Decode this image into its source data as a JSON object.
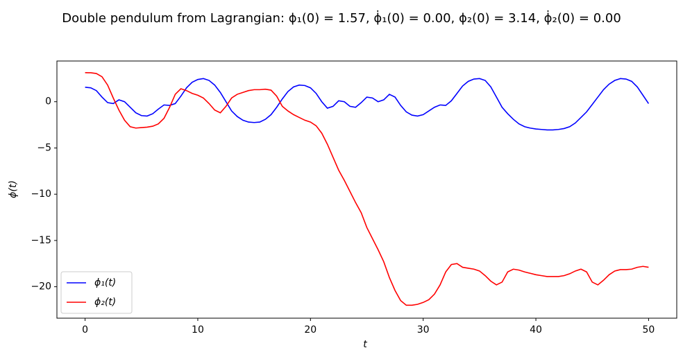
{
  "chart_data": {
    "type": "line",
    "title": "Double pendulum from Lagrangian:    ϕ₁(0) = 1.57,   ϕ̇₁(0) = 0.00,   ϕ₂(0) = 3.14,   ϕ̇₂(0) = 0.00",
    "xlabel": "t",
    "ylabel": "ϕ(t)",
    "x": [
      0,
      0.5,
      1,
      1.5,
      2,
      2.5,
      3,
      3.5,
      4,
      4.5,
      5,
      5.5,
      6,
      6.5,
      7,
      7.5,
      8,
      8.5,
      9,
      9.5,
      10,
      10.5,
      11,
      11.5,
      12,
      12.5,
      13,
      13.5,
      14,
      14.5,
      15,
      15.5,
      16,
      16.5,
      17,
      17.5,
      18,
      18.5,
      19,
      19.5,
      20,
      20.5,
      21,
      21.5,
      22,
      22.5,
      23,
      23.5,
      24,
      24.5,
      25,
      25.5,
      26,
      26.5,
      27,
      27.5,
      28,
      28.5,
      29,
      29.5,
      30,
      30.5,
      31,
      31.5,
      32,
      32.5,
      33,
      33.5,
      34,
      34.5,
      35,
      35.5,
      36,
      36.5,
      37,
      37.5,
      38,
      38.5,
      39,
      39.5,
      40,
      40.5,
      41,
      41.5,
      42,
      42.5,
      43,
      43.5,
      44,
      44.5,
      45,
      45.5,
      46,
      46.5,
      47,
      47.5,
      48,
      48.5,
      49,
      49.5,
      50
    ],
    "series": [
      {
        "name": "ϕ₁(t)",
        "color": "#0000ff",
        "values": [
          1.57,
          1.5,
          1.2,
          0.5,
          -0.1,
          -0.2,
          0.2,
          0.0,
          -0.6,
          -1.2,
          -1.5,
          -1.55,
          -1.3,
          -0.8,
          -0.35,
          -0.4,
          -0.2,
          0.6,
          1.5,
          2.1,
          2.4,
          2.5,
          2.3,
          1.8,
          1.0,
          0.0,
          -1.0,
          -1.6,
          -2.0,
          -2.2,
          -2.25,
          -2.2,
          -1.9,
          -1.4,
          -0.6,
          0.3,
          1.1,
          1.6,
          1.8,
          1.75,
          1.5,
          0.9,
          0.0,
          -0.7,
          -0.5,
          0.1,
          0.0,
          -0.5,
          -0.6,
          -0.1,
          0.5,
          0.4,
          0.0,
          0.2,
          0.8,
          0.5,
          -0.4,
          -1.1,
          -1.45,
          -1.55,
          -1.4,
          -1.0,
          -0.6,
          -0.35,
          -0.4,
          0.1,
          0.9,
          1.7,
          2.2,
          2.45,
          2.5,
          2.3,
          1.6,
          0.5,
          -0.6,
          -1.3,
          -1.9,
          -2.4,
          -2.7,
          -2.85,
          -2.95,
          -3.0,
          -3.05,
          -3.05,
          -3.0,
          -2.9,
          -2.7,
          -2.3,
          -1.7,
          -1.1,
          -0.3,
          0.5,
          1.3,
          1.9,
          2.3,
          2.5,
          2.45,
          2.2,
          1.6,
          0.7,
          -0.2
        ]
      },
      {
        "name": "ϕ₂(t)",
        "color": "#ff0000",
        "values": [
          3.14,
          3.13,
          3.05,
          2.7,
          1.8,
          0.4,
          -0.9,
          -2.0,
          -2.7,
          -2.85,
          -2.8,
          -2.75,
          -2.65,
          -2.4,
          -1.8,
          -0.6,
          0.8,
          1.4,
          1.2,
          0.9,
          0.7,
          0.4,
          -0.2,
          -0.9,
          -1.2,
          -0.5,
          0.4,
          0.8,
          1.0,
          1.2,
          1.3,
          1.3,
          1.35,
          1.25,
          0.6,
          -0.5,
          -1.0,
          -1.4,
          -1.7,
          -2.0,
          -2.2,
          -2.6,
          -3.4,
          -4.6,
          -6.0,
          -7.4,
          -8.5,
          -9.7,
          -10.9,
          -12.0,
          -13.6,
          -14.8,
          -16.0,
          -17.3,
          -19.0,
          -20.4,
          -21.5,
          -22.0,
          -22.0,
          -21.9,
          -21.7,
          -21.4,
          -20.8,
          -19.8,
          -18.4,
          -17.6,
          -17.5,
          -17.9,
          -18.0,
          -18.1,
          -18.3,
          -18.8,
          -19.4,
          -19.8,
          -19.5,
          -18.4,
          -18.1,
          -18.2,
          -18.4,
          -18.55,
          -18.7,
          -18.8,
          -18.9,
          -18.9,
          -18.9,
          -18.8,
          -18.6,
          -18.3,
          -18.1,
          -18.4,
          -19.5,
          -19.8,
          -19.3,
          -18.7,
          -18.3,
          -18.15,
          -18.15,
          -18.1,
          -17.9,
          -17.8,
          -17.9
        ]
      }
    ],
    "xlim": [
      -2.5,
      52.5
    ],
    "xticks": [
      0,
      10,
      20,
      30,
      40,
      50
    ],
    "ylim": [
      -23.4,
      4.4
    ],
    "yticks": [
      {
        "value": -20,
        "label": "−20"
      },
      {
        "value": -15,
        "label": "−15"
      },
      {
        "value": -10,
        "label": "−10"
      },
      {
        "value": -5,
        "label": "−5"
      },
      0
    ],
    "legend": "lower left",
    "grid": false
  }
}
